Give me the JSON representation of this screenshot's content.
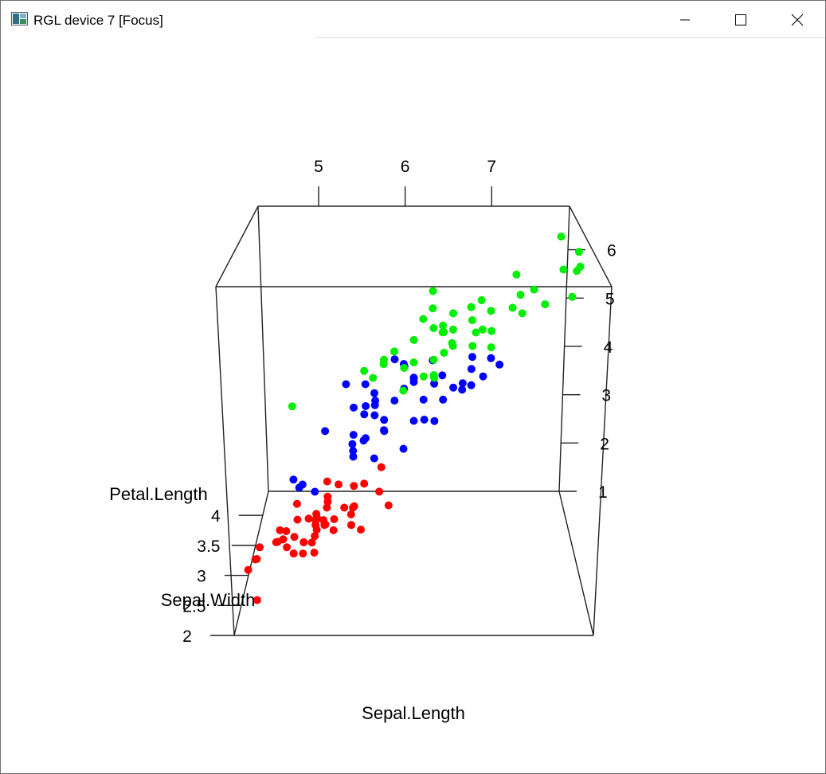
{
  "window": {
    "title": "RGL device 7 [Focus]",
    "icon": "rgl-app-icon",
    "controls": [
      "minimize-icon",
      "maximize-icon",
      "close-icon"
    ]
  },
  "chart_data": {
    "type": "scatter",
    "plot_style": "3d",
    "dataset": "iris",
    "xlabel": "Sepal.Length",
    "ylabel": "Sepal.Width",
    "zlabel": "Petal.Length",
    "x_ticks": [
      "5",
      "6",
      "7"
    ],
    "y_ticks": [
      "2",
      "2.5",
      "3",
      "3.5",
      "4"
    ],
    "z_ticks": [
      "1",
      "2",
      "3",
      "4",
      "5",
      "6"
    ],
    "xlim": [
      4.3,
      7.9
    ],
    "ylim": [
      2.0,
      4.4
    ],
    "zlim": [
      1.0,
      6.9
    ],
    "series_colors": [
      "#ff0000",
      "#0000ff",
      "#00ee00"
    ],
    "series": [
      {
        "color": "#ff0000",
        "points": [
          [
            5.1,
            3.5,
            1.4
          ],
          [
            4.9,
            3.0,
            1.4
          ],
          [
            4.7,
            3.2,
            1.3
          ],
          [
            4.6,
            3.1,
            1.5
          ],
          [
            5.0,
            3.6,
            1.4
          ],
          [
            5.4,
            3.9,
            1.7
          ],
          [
            4.6,
            3.4,
            1.4
          ],
          [
            5.0,
            3.4,
            1.5
          ],
          [
            4.4,
            2.9,
            1.4
          ],
          [
            4.9,
            3.1,
            1.5
          ],
          [
            5.4,
            3.7,
            1.5
          ],
          [
            4.8,
            3.4,
            1.6
          ],
          [
            4.8,
            3.0,
            1.4
          ],
          [
            4.3,
            3.0,
            1.1
          ],
          [
            5.8,
            4.0,
            1.2
          ],
          [
            5.7,
            4.4,
            1.5
          ],
          [
            5.4,
            3.9,
            1.3
          ],
          [
            5.1,
            3.5,
            1.4
          ],
          [
            5.7,
            3.8,
            1.7
          ],
          [
            5.1,
            3.8,
            1.5
          ],
          [
            5.4,
            3.4,
            1.7
          ],
          [
            5.1,
            3.7,
            1.5
          ],
          [
            4.6,
            3.6,
            1.0
          ],
          [
            5.1,
            3.3,
            1.7
          ],
          [
            4.8,
            3.4,
            1.9
          ],
          [
            5.0,
            3.0,
            1.6
          ],
          [
            5.0,
            3.4,
            1.6
          ],
          [
            5.2,
            3.5,
            1.5
          ],
          [
            5.2,
            3.4,
            1.4
          ],
          [
            4.7,
            3.2,
            1.6
          ],
          [
            4.8,
            3.1,
            1.6
          ],
          [
            5.4,
            3.4,
            1.5
          ],
          [
            5.2,
            4.1,
            1.5
          ],
          [
            5.5,
            4.2,
            1.4
          ],
          [
            4.9,
            3.1,
            1.5
          ],
          [
            5.0,
            3.2,
            1.2
          ],
          [
            5.5,
            3.5,
            1.3
          ],
          [
            4.9,
            3.6,
            1.4
          ],
          [
            4.4,
            3.0,
            1.3
          ],
          [
            5.1,
            3.4,
            1.5
          ],
          [
            5.0,
            3.5,
            1.3
          ],
          [
            4.5,
            2.3,
            1.3
          ],
          [
            4.4,
            3.2,
            1.3
          ],
          [
            5.0,
            3.5,
            1.6
          ],
          [
            5.1,
            3.8,
            1.9
          ],
          [
            4.8,
            3.0,
            1.4
          ],
          [
            5.1,
            3.8,
            1.6
          ],
          [
            4.6,
            3.2,
            1.4
          ],
          [
            5.3,
            3.7,
            1.5
          ],
          [
            5.0,
            3.3,
            1.4
          ]
        ]
      },
      {
        "color": "#0000ff",
        "points": [
          [
            7.0,
            3.2,
            4.7
          ],
          [
            6.4,
            3.2,
            4.5
          ],
          [
            6.9,
            3.1,
            4.9
          ],
          [
            5.5,
            2.3,
            4.0
          ],
          [
            6.5,
            2.8,
            4.6
          ],
          [
            5.7,
            2.8,
            4.5
          ],
          [
            6.3,
            3.3,
            4.7
          ],
          [
            4.9,
            2.4,
            3.3
          ],
          [
            6.6,
            2.9,
            4.6
          ],
          [
            5.2,
            2.7,
            3.9
          ],
          [
            5.0,
            2.0,
            3.5
          ],
          [
            5.9,
            3.0,
            4.2
          ],
          [
            6.0,
            2.2,
            4.0
          ],
          [
            6.1,
            2.9,
            4.7
          ],
          [
            5.6,
            2.9,
            3.6
          ],
          [
            6.7,
            3.1,
            4.4
          ],
          [
            5.6,
            3.0,
            4.5
          ],
          [
            5.8,
            2.7,
            4.1
          ],
          [
            6.2,
            2.2,
            4.5
          ],
          [
            5.6,
            2.5,
            3.9
          ],
          [
            5.9,
            3.2,
            4.8
          ],
          [
            6.1,
            2.8,
            4.0
          ],
          [
            6.3,
            2.5,
            4.9
          ],
          [
            6.1,
            2.8,
            4.7
          ],
          [
            6.4,
            2.9,
            4.3
          ],
          [
            6.6,
            3.0,
            4.4
          ],
          [
            6.8,
            2.8,
            4.8
          ],
          [
            6.7,
            3.0,
            5.0
          ],
          [
            6.0,
            2.9,
            4.5
          ],
          [
            5.7,
            2.6,
            3.5
          ],
          [
            5.5,
            2.4,
            3.8
          ],
          [
            5.5,
            2.4,
            3.7
          ],
          [
            5.8,
            2.7,
            3.9
          ],
          [
            6.0,
            2.7,
            5.1
          ],
          [
            5.4,
            3.0,
            4.5
          ],
          [
            6.0,
            3.4,
            4.5
          ],
          [
            6.7,
            3.1,
            4.7
          ],
          [
            6.3,
            2.3,
            4.4
          ],
          [
            5.6,
            3.0,
            4.1
          ],
          [
            5.5,
            2.5,
            4.0
          ],
          [
            5.5,
            2.6,
            4.4
          ],
          [
            6.1,
            3.0,
            4.6
          ],
          [
            5.8,
            2.6,
            4.0
          ],
          [
            5.0,
            2.3,
            3.3
          ],
          [
            5.6,
            2.7,
            4.2
          ],
          [
            5.7,
            3.0,
            4.2
          ],
          [
            5.7,
            2.9,
            4.2
          ],
          [
            6.2,
            2.9,
            4.3
          ],
          [
            5.1,
            2.5,
            3.0
          ],
          [
            5.7,
            2.8,
            4.1
          ]
        ]
      },
      {
        "color": "#00ee00",
        "points": [
          [
            6.3,
            3.3,
            6.0
          ],
          [
            5.8,
            2.7,
            5.1
          ],
          [
            7.1,
            3.0,
            5.9
          ],
          [
            6.3,
            2.9,
            5.6
          ],
          [
            6.5,
            3.0,
            5.8
          ],
          [
            7.6,
            3.0,
            6.6
          ],
          [
            4.9,
            2.5,
            4.5
          ],
          [
            7.3,
            2.9,
            6.3
          ],
          [
            6.7,
            2.5,
            5.8
          ],
          [
            7.2,
            3.6,
            6.1
          ],
          [
            6.5,
            3.2,
            5.1
          ],
          [
            6.4,
            2.7,
            5.3
          ],
          [
            6.8,
            3.0,
            5.5
          ],
          [
            5.7,
            2.5,
            5.0
          ],
          [
            5.8,
            2.8,
            5.1
          ],
          [
            6.4,
            3.2,
            5.3
          ],
          [
            6.5,
            3.0,
            5.5
          ],
          [
            7.7,
            3.8,
            6.7
          ],
          [
            7.7,
            2.6,
            6.9
          ],
          [
            6.0,
            2.2,
            5.0
          ],
          [
            6.9,
            3.2,
            5.7
          ],
          [
            5.6,
            2.8,
            4.9
          ],
          [
            7.7,
            2.8,
            6.7
          ],
          [
            6.3,
            2.7,
            4.9
          ],
          [
            6.7,
            3.3,
            5.7
          ],
          [
            7.2,
            3.2,
            6.0
          ],
          [
            6.2,
            2.8,
            4.8
          ],
          [
            6.1,
            3.0,
            4.9
          ],
          [
            6.4,
            2.8,
            5.6
          ],
          [
            7.2,
            3.0,
            5.8
          ],
          [
            7.4,
            2.8,
            6.1
          ],
          [
            7.9,
            3.8,
            6.4
          ],
          [
            6.4,
            2.8,
            5.6
          ],
          [
            6.3,
            2.8,
            5.1
          ],
          [
            6.1,
            2.6,
            5.6
          ],
          [
            7.7,
            3.0,
            6.1
          ],
          [
            6.3,
            3.4,
            5.6
          ],
          [
            6.4,
            3.1,
            5.5
          ],
          [
            6.0,
            3.0,
            4.8
          ],
          [
            6.9,
            3.1,
            5.4
          ],
          [
            6.7,
            3.1,
            5.6
          ],
          [
            6.9,
            3.1,
            5.1
          ],
          [
            5.8,
            2.7,
            5.1
          ],
          [
            6.8,
            3.2,
            5.9
          ],
          [
            6.7,
            3.3,
            5.7
          ],
          [
            6.7,
            3.0,
            5.2
          ],
          [
            6.3,
            2.5,
            5.0
          ],
          [
            6.5,
            3.0,
            5.2
          ],
          [
            6.2,
            3.4,
            5.4
          ],
          [
            5.9,
            3.0,
            5.1
          ]
        ]
      }
    ]
  }
}
